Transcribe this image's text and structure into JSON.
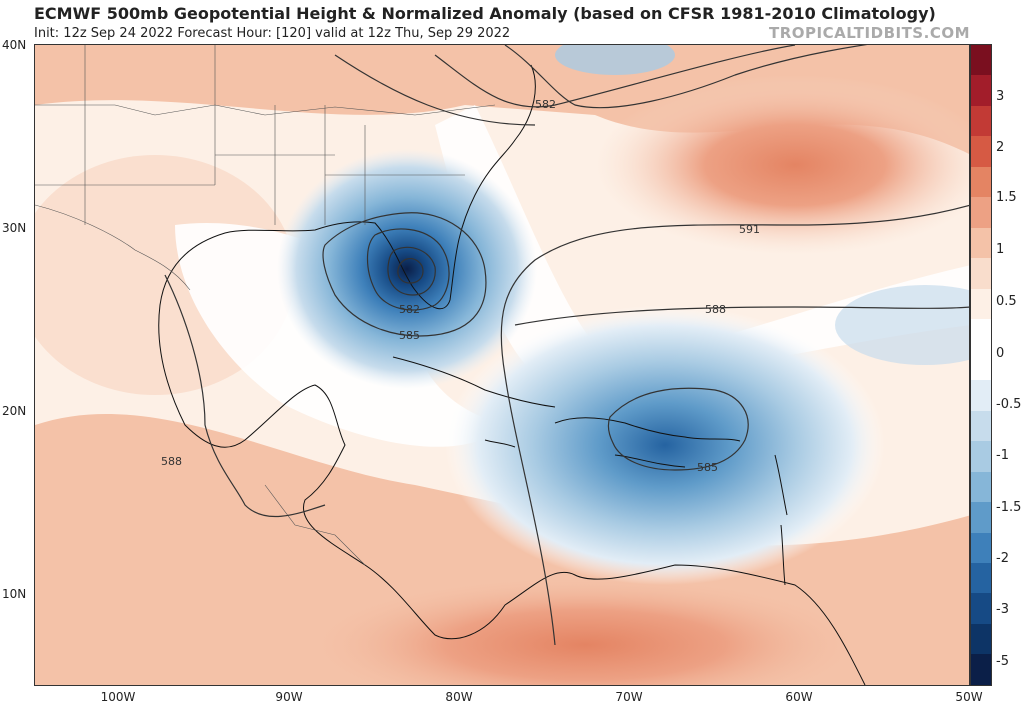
{
  "header": {
    "title": "ECMWF 500mb Geopotential Height & Normalized Anomaly (based on CFSR 1981-2010 Climatology)",
    "subtitle": "Init: 12z Sep 24 2022   Forecast Hour: [120]   valid at 12z Thu, Sep 29 2022",
    "site": "TROPICALTIDBITS.COM"
  },
  "map": {
    "lat_labels": [
      "40N",
      "30N",
      "20N",
      "10N"
    ],
    "lon_labels": [
      "100W",
      "90W",
      "80W",
      "70W",
      "60W",
      "50W"
    ],
    "contour_labels": [
      "582",
      "591",
      "588",
      "582",
      "585",
      "585",
      "588"
    ]
  },
  "colorbar": {
    "labels": [
      "3",
      "2",
      "1.5",
      "1",
      "0.5",
      "0",
      "-0.5",
      "-1",
      "-1.5",
      "-2",
      "-3",
      "-5"
    ],
    "colors": [
      "#7a0f1f",
      "#a21d2a",
      "#c23a35",
      "#d65a44",
      "#e48463",
      "#eda184",
      "#f4c2a8",
      "#f9ddcc",
      "#fdf0e6",
      "#ffffff",
      "#ffffff",
      "#e2edf6",
      "#c7dcec",
      "#a9cbe3",
      "#86b6d8",
      "#5f9bc9",
      "#3e80ba",
      "#2563a1",
      "#164a85",
      "#0d3466",
      "#0b1f48"
    ]
  }
}
